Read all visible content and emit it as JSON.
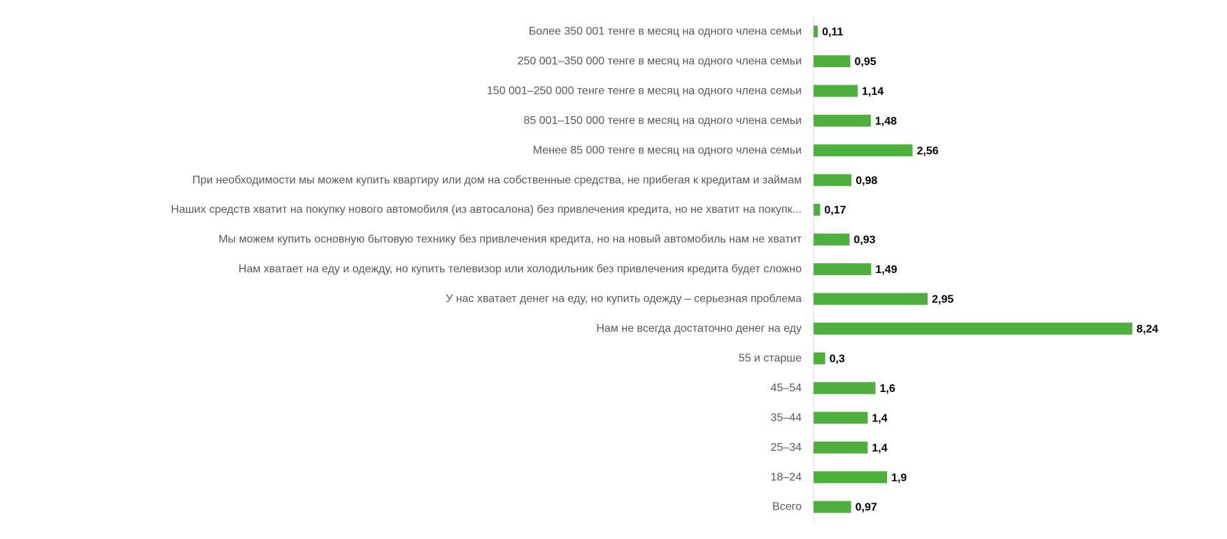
{
  "chart_data": {
    "type": "bar",
    "orientation": "horizontal",
    "title": "",
    "xlabel": "",
    "ylabel": "",
    "xlim": [
      0,
      10
    ],
    "grid": false,
    "legend": "none",
    "bar_color": "#4daf3c",
    "categories": [
      "Более 350 001 тенге в месяц на одного члена семьи",
      "250 001–350 000 тенге в месяц на одного члена семьи",
      "150 001–250 000 тенге тенге в месяц на одного члена семьи",
      "85 001–150 000 тенге в месяц на одного члена семьи",
      "Менее 85 000 тенге в месяц на одного члена семьи",
      "При необходимости мы можем купить квартиру или дом на собственные средства, не прибегая к кредитам и займам",
      "Наших средств хватит на покупку нового автомобиля (из автосалона) без привлечения кредита, но не хватит на покупк...",
      "Мы можем купить основную бытовую технику без привлечения кредита, но на новый автомобиль нам не хватит",
      "Нам хватает на еду и одежду, но купить телевизор или холодильник без привлечения кредита будет сложно",
      "У нас хватает денег на еду, но купить одежду – серьезная проблема",
      "Нам не всегда достаточно денег на еду",
      "55 и старше",
      "45–54",
      "35–44",
      "25–34",
      "18–24",
      "Всего"
    ],
    "values": [
      0.11,
      0.95,
      1.14,
      1.48,
      2.56,
      0.98,
      0.17,
      0.93,
      1.49,
      2.95,
      8.24,
      0.3,
      1.6,
      1.4,
      1.4,
      1.9,
      0.97
    ],
    "value_labels": [
      "0,11",
      "0,95",
      "1,14",
      "1,48",
      "2,56",
      "0,98",
      "0,17",
      "0,93",
      "1,49",
      "2,95",
      "8,24",
      "0,3",
      "1,6",
      "1,4",
      "1,4",
      "1,9",
      "0,97"
    ]
  }
}
